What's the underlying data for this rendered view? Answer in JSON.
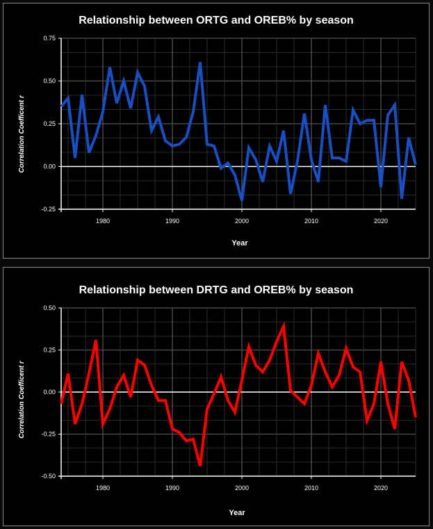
{
  "chart_data": [
    {
      "type": "line",
      "title": "Relationship between ORTG and OREB% by season",
      "xlabel": "Year",
      "ylabel": "Correlation Coefficent r",
      "xlim": [
        1974,
        2025
      ],
      "ylim": [
        -0.25,
        0.75
      ],
      "xticks": [
        1980,
        1990,
        2000,
        2010,
        2020
      ],
      "yticks": [
        "-0.25",
        "0.00",
        "0.25",
        "0.50",
        "0.75"
      ],
      "grid": true,
      "color": "#1a4fc4",
      "x": [
        1974,
        1975,
        1976,
        1977,
        1978,
        1979,
        1980,
        1981,
        1982,
        1983,
        1984,
        1985,
        1986,
        1987,
        1988,
        1989,
        1990,
        1991,
        1992,
        1993,
        1994,
        1995,
        1996,
        1997,
        1998,
        1999,
        2000,
        2001,
        2002,
        2003,
        2004,
        2005,
        2006,
        2007,
        2008,
        2009,
        2010,
        2011,
        2012,
        2013,
        2014,
        2015,
        2016,
        2017,
        2018,
        2019,
        2020,
        2021,
        2022,
        2023,
        2024,
        2025
      ],
      "y": [
        0.35,
        0.4,
        0.05,
        0.42,
        0.08,
        0.18,
        0.32,
        0.58,
        0.37,
        0.5,
        0.34,
        0.55,
        0.47,
        0.21,
        0.29,
        0.15,
        0.12,
        0.13,
        0.17,
        0.32,
        0.61,
        0.13,
        0.12,
        -0.01,
        0.02,
        -0.05,
        -0.2,
        0.11,
        0.04,
        -0.09,
        0.12,
        0.03,
        0.21,
        -0.16,
        0.03,
        0.31,
        0.04,
        -0.09,
        0.36,
        0.05,
        0.05,
        0.03,
        0.33,
        0.25,
        0.27,
        0.27,
        -0.12,
        0.3,
        0.36,
        -0.19,
        0.17,
        0.01
      ]
    },
    {
      "type": "line",
      "title": "Relationship between DRTG and OREB% by season",
      "xlabel": "Year",
      "ylabel": "Correlation Coefficent r",
      "xlim": [
        1974,
        2025
      ],
      "ylim": [
        -0.5,
        0.5
      ],
      "xticks": [
        1980,
        1990,
        2000,
        2010,
        2020
      ],
      "yticks": [
        "-0.50",
        "-0.25",
        "0.00",
        "0.25",
        "0.50"
      ],
      "grid": true,
      "color": "#ff0000",
      "x": [
        1974,
        1975,
        1976,
        1977,
        1978,
        1979,
        1980,
        1981,
        1982,
        1983,
        1984,
        1985,
        1986,
        1987,
        1988,
        1989,
        1990,
        1991,
        1992,
        1993,
        1994,
        1995,
        1996,
        1997,
        1998,
        1999,
        2000,
        2001,
        2002,
        2003,
        2004,
        2005,
        2006,
        2007,
        2008,
        2009,
        2010,
        2011,
        2012,
        2013,
        2014,
        2015,
        2016,
        2017,
        2018,
        2019,
        2020,
        2021,
        2022,
        2023,
        2024,
        2025
      ],
      "y": [
        -0.07,
        0.11,
        -0.19,
        -0.07,
        0.11,
        0.31,
        -0.19,
        -0.1,
        0.03,
        0.1,
        -0.03,
        0.19,
        0.16,
        0.04,
        -0.05,
        -0.05,
        -0.22,
        -0.24,
        -0.29,
        -0.28,
        -0.44,
        -0.1,
        -0.01,
        0.09,
        -0.05,
        -0.12,
        0.07,
        0.27,
        0.16,
        0.12,
        0.19,
        0.3,
        0.39,
        0.01,
        -0.03,
        -0.07,
        0.04,
        0.23,
        0.12,
        0.03,
        0.1,
        0.26,
        0.15,
        0.12,
        -0.17,
        -0.07,
        0.18,
        -0.07,
        -0.22,
        0.18,
        0.07,
        -0.15
      ]
    }
  ]
}
